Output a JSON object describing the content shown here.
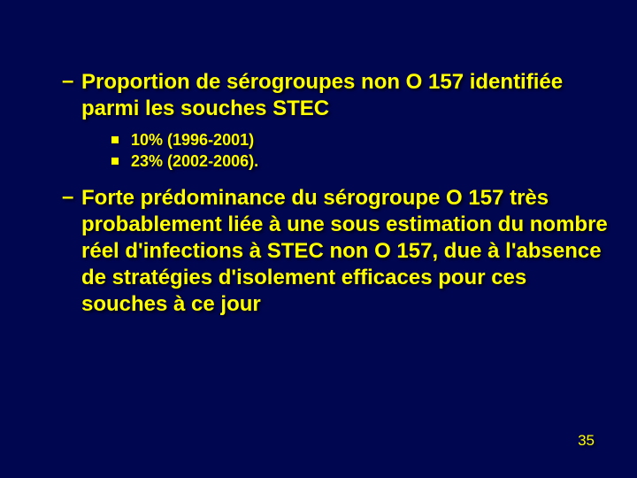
{
  "slide": {
    "items": [
      {
        "text": "Proportion de sérogroupes non O 157 identifiée parmi les souches STEC",
        "subs": [
          "10% (1996-2001)",
          "23% (2002-2006)."
        ]
      },
      {
        "text": "Forte prédominance du sérogroupe O 157  très probablement liée à une sous estimation du nombre réel d'infections à STEC non O 157, due à l'absence de stratégies d'isolement efficaces pour ces souches à ce jour",
        "subs": []
      }
    ],
    "page_number": "35"
  },
  "colors": {
    "background": "#010651",
    "text": "#ffff00"
  }
}
